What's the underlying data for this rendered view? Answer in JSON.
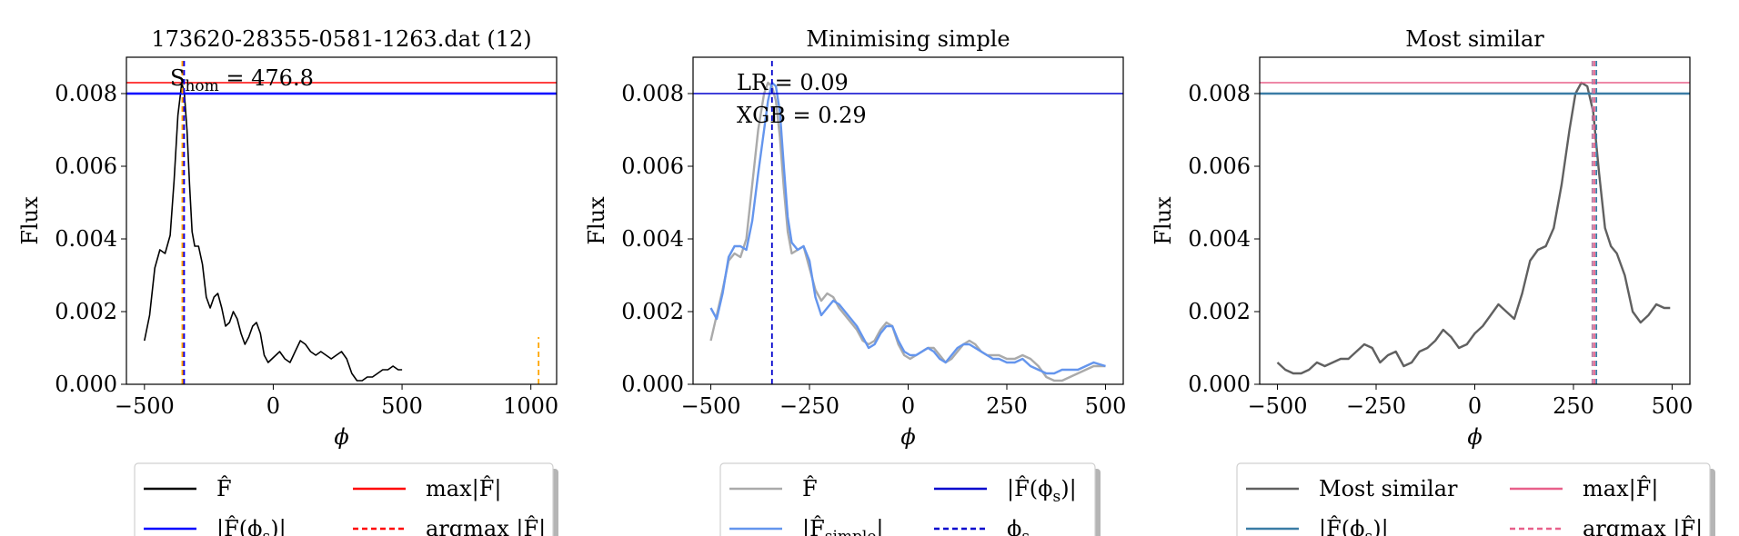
{
  "chart_data": [
    {
      "type": "line",
      "title": "173620-28355-0581-1263.dat (12)",
      "xlabel": "ϕ",
      "ylabel": "Flux",
      "xlim": [
        -570,
        1100
      ],
      "ylim": [
        0,
        0.009
      ],
      "xticks": [
        -500,
        0,
        500,
        1000
      ],
      "xtick_labels": [
        "−500",
        "0",
        "500",
        "1000"
      ],
      "yticks": [
        0,
        0.002,
        0.004,
        0.006,
        0.008
      ],
      "ytick_labels": [
        "0.000",
        "0.002",
        "0.004",
        "0.006",
        "0.008"
      ],
      "annotations": [
        "S_hom = 476.8"
      ],
      "series": [
        {
          "name": "F̂",
          "color": "#000000",
          "style": "solid",
          "x": [
            -500,
            -480,
            -460,
            -440,
            -420,
            -400,
            -385,
            -370,
            -355,
            -345,
            -335,
            -325,
            -315,
            -305,
            -290,
            -275,
            -260,
            -245,
            -230,
            -215,
            -200,
            -185,
            -170,
            -155,
            -140,
            -125,
            -110,
            -95,
            -80,
            -65,
            -50,
            -35,
            -20,
            -5,
            10,
            25,
            45,
            65,
            85,
            105,
            125,
            145,
            165,
            185,
            205,
            225,
            245,
            265,
            285,
            305,
            325,
            345,
            365,
            385,
            405,
            425,
            445,
            465,
            485,
            500
          ],
          "y": [
            0.0012,
            0.0019,
            0.0032,
            0.0037,
            0.0036,
            0.0041,
            0.0056,
            0.0074,
            0.0083,
            0.008,
            0.007,
            0.0055,
            0.0042,
            0.0038,
            0.0038,
            0.0033,
            0.0024,
            0.0021,
            0.0024,
            0.0025,
            0.0021,
            0.0016,
            0.0017,
            0.002,
            0.0018,
            0.0014,
            0.0011,
            0.0013,
            0.0016,
            0.0017,
            0.0014,
            0.0008,
            0.0006,
            0.0007,
            0.0008,
            0.0009,
            0.0007,
            0.0006,
            0.0009,
            0.0012,
            0.0011,
            0.0009,
            0.0008,
            0.0009,
            0.0008,
            0.0007,
            0.0008,
            0.0009,
            0.0007,
            0.0003,
            0.0001,
            0.0001,
            0.0002,
            0.0002,
            0.0003,
            0.0004,
            0.0004,
            0.0005,
            0.0004,
            0.0004
          ]
        }
      ],
      "hlines": [
        {
          "name": "max|F̂|",
          "y": 0.0083,
          "color": "#ff0000",
          "style": "solid"
        },
        {
          "name": "|F̂(ϕs)|",
          "y": 0.008,
          "color": "#0000ff",
          "style": "solid",
          "thick": true
        }
      ],
      "vlines": [
        {
          "name": "argmax |F̂|",
          "x": -350,
          "color": "#ff0000",
          "style": "dashed"
        },
        {
          "name": "ϕs",
          "x": -346,
          "color": "#0000ff",
          "style": "dashed"
        },
        {
          "name": "",
          "x": -353,
          "color": "#ffa500",
          "style": "dashed",
          "ymax": 0.009
        },
        {
          "name": "",
          "x": 1030,
          "color": "#ffa500",
          "style": "dashed",
          "ymax": 0.0013
        }
      ],
      "legend": [
        {
          "label": "F̂",
          "color": "#000000",
          "style": "solid"
        },
        {
          "label": "max|F̂|",
          "color": "#ff0000",
          "style": "solid"
        },
        {
          "label": "|F̂(ϕs)|",
          "color": "#0000ff",
          "style": "solid"
        },
        {
          "label": "argmax |F̂|",
          "color": "#ff0000",
          "style": "dashed"
        }
      ]
    },
    {
      "type": "line",
      "title": "Minimising simple",
      "xlabel": "ϕ",
      "ylabel": "Flux",
      "xlim": [
        -545,
        545
      ],
      "ylim": [
        0,
        0.009
      ],
      "xticks": [
        -500,
        -250,
        0,
        250,
        500
      ],
      "xtick_labels": [
        "−500",
        "−250",
        "0",
        "250",
        "500"
      ],
      "yticks": [
        0,
        0.002,
        0.004,
        0.006,
        0.008
      ],
      "ytick_labels": [
        "0.000",
        "0.002",
        "0.004",
        "0.006",
        "0.008"
      ],
      "annotations": [
        "LR = 0.09",
        "XGB = 0.29"
      ],
      "series": [
        {
          "name": "F̂",
          "color": "#aaaaaa",
          "style": "solid",
          "x": [
            -500,
            -485,
            -470,
            -455,
            -440,
            -425,
            -410,
            -395,
            -380,
            -365,
            -355,
            -345,
            -335,
            -325,
            -315,
            -305,
            -295,
            -280,
            -265,
            -250,
            -235,
            -220,
            -205,
            -190,
            -175,
            -160,
            -145,
            -130,
            -115,
            -100,
            -85,
            -70,
            -55,
            -40,
            -25,
            -10,
            5,
            20,
            35,
            50,
            65,
            80,
            95,
            110,
            125,
            140,
            155,
            170,
            185,
            200,
            215,
            230,
            250,
            270,
            290,
            310,
            330,
            350,
            370,
            390,
            410,
            430,
            450,
            470,
            500
          ],
          "y": [
            0.0012,
            0.0019,
            0.0026,
            0.0034,
            0.0036,
            0.0035,
            0.004,
            0.0055,
            0.007,
            0.008,
            0.0083,
            0.0082,
            0.0078,
            0.0068,
            0.0054,
            0.0042,
            0.0036,
            0.0037,
            0.0038,
            0.0032,
            0.0026,
            0.0023,
            0.0025,
            0.0024,
            0.0021,
            0.0019,
            0.0017,
            0.0015,
            0.0012,
            0.0011,
            0.0012,
            0.0015,
            0.0017,
            0.0016,
            0.0011,
            0.0008,
            0.0007,
            0.0008,
            0.0009,
            0.001,
            0.001,
            0.0008,
            0.0006,
            0.0007,
            0.0009,
            0.0011,
            0.0012,
            0.0011,
            0.0009,
            0.0008,
            0.0008,
            0.0008,
            0.0007,
            0.0007,
            0.0008,
            0.0007,
            0.0005,
            0.0002,
            0.0001,
            0.0001,
            0.0002,
            0.0003,
            0.0004,
            0.0005,
            0.0005
          ]
        },
        {
          "name": "|F̂simple|",
          "color": "#6495ed",
          "style": "solid",
          "x": [
            -500,
            -485,
            -470,
            -455,
            -440,
            -425,
            -410,
            -395,
            -380,
            -365,
            -355,
            -345,
            -335,
            -325,
            -315,
            -305,
            -295,
            -280,
            -265,
            -250,
            -235,
            -220,
            -205,
            -190,
            -175,
            -160,
            -145,
            -130,
            -115,
            -100,
            -85,
            -70,
            -55,
            -40,
            -25,
            -10,
            5,
            20,
            35,
            50,
            65,
            80,
            95,
            110,
            125,
            140,
            155,
            170,
            185,
            200,
            215,
            230,
            250,
            270,
            290,
            310,
            330,
            350,
            370,
            390,
            410,
            430,
            450,
            470,
            500
          ],
          "y": [
            0.0021,
            0.0018,
            0.0025,
            0.0035,
            0.0038,
            0.0038,
            0.0037,
            0.0045,
            0.0058,
            0.007,
            0.0078,
            0.0083,
            0.0082,
            0.0075,
            0.006,
            0.0046,
            0.0039,
            0.0037,
            0.0038,
            0.0034,
            0.0024,
            0.0019,
            0.0021,
            0.0023,
            0.0022,
            0.002,
            0.0018,
            0.0016,
            0.0013,
            0.001,
            0.0011,
            0.0014,
            0.0016,
            0.0016,
            0.0012,
            0.0009,
            0.0008,
            0.0008,
            0.0009,
            0.001,
            0.0009,
            0.0007,
            0.0006,
            0.0008,
            0.001,
            0.0011,
            0.0011,
            0.001,
            0.0009,
            0.0008,
            0.0007,
            0.0007,
            0.0006,
            0.0006,
            0.0007,
            0.0005,
            0.0004,
            0.0003,
            0.0003,
            0.0004,
            0.0004,
            0.0004,
            0.0005,
            0.0006,
            0.0005
          ]
        }
      ],
      "hlines": [
        {
          "name": "|F̂(ϕs)|",
          "y": 0.008,
          "color": "#0000cd",
          "style": "solid"
        }
      ],
      "vlines": [
        {
          "name": "ϕs",
          "x": -345,
          "color": "#0000cd",
          "style": "dashed"
        }
      ],
      "legend": [
        {
          "label": "F̂",
          "color": "#aaaaaa",
          "style": "solid"
        },
        {
          "label": "|F̂(ϕs)|",
          "color": "#0000cd",
          "style": "solid"
        },
        {
          "label": "|F̂simple|",
          "color": "#6495ed",
          "style": "solid"
        },
        {
          "label": "ϕs",
          "color": "#0000cd",
          "style": "dashed"
        }
      ]
    },
    {
      "type": "line",
      "title": "Most similar",
      "xlabel": "ϕ",
      "ylabel": "Flux",
      "xlim": [
        -545,
        545
      ],
      "ylim": [
        0,
        0.009
      ],
      "xticks": [
        -500,
        -250,
        0,
        250,
        500
      ],
      "xtick_labels": [
        "−500",
        "−250",
        "0",
        "250",
        "500"
      ],
      "yticks": [
        0,
        0.002,
        0.004,
        0.006,
        0.008
      ],
      "ytick_labels": [
        "0.000",
        "0.002",
        "0.004",
        "0.006",
        "0.008"
      ],
      "annotations": [],
      "series": [
        {
          "name": "Most similar",
          "color": "#606060",
          "style": "solid",
          "x": [
            -500,
            -480,
            -460,
            -440,
            -420,
            -400,
            -380,
            -360,
            -340,
            -320,
            -300,
            -280,
            -260,
            -240,
            -220,
            -200,
            -180,
            -160,
            -140,
            -120,
            -100,
            -80,
            -60,
            -40,
            -20,
            0,
            20,
            40,
            60,
            80,
            100,
            120,
            140,
            160,
            180,
            200,
            220,
            240,
            255,
            270,
            285,
            300,
            315,
            330,
            345,
            360,
            380,
            400,
            420,
            440,
            460,
            480,
            495
          ],
          "y": [
            0.0006,
            0.0004,
            0.0003,
            0.0003,
            0.0004,
            0.0006,
            0.0005,
            0.0006,
            0.0007,
            0.0007,
            0.0009,
            0.0011,
            0.001,
            0.0006,
            0.0008,
            0.0009,
            0.0005,
            0.0006,
            0.0009,
            0.001,
            0.0012,
            0.0015,
            0.0013,
            0.001,
            0.0011,
            0.0014,
            0.0016,
            0.0019,
            0.0022,
            0.002,
            0.0018,
            0.0025,
            0.0034,
            0.0037,
            0.0038,
            0.0043,
            0.0055,
            0.007,
            0.008,
            0.0083,
            0.0082,
            0.0075,
            0.0058,
            0.0043,
            0.0038,
            0.0036,
            0.003,
            0.002,
            0.0017,
            0.0019,
            0.0022,
            0.0021,
            0.0021
          ]
        }
      ],
      "hlines": [
        {
          "name": "max|F̂|",
          "y": 0.0083,
          "color": "#e8608a",
          "style": "solid"
        },
        {
          "name": "|F̂(ϕs)|",
          "y": 0.008,
          "color": "#3a7ca5",
          "style": "solid",
          "thick": true
        }
      ],
      "vlines": [
        {
          "name": "argmax |F̂|",
          "x": 303,
          "color": "#e8608a",
          "style": "dashed"
        },
        {
          "name": "ϕs",
          "x": 308,
          "color": "#3a7ca5",
          "style": "dashed"
        },
        {
          "name": "",
          "x": 298,
          "color": "#b07aa1",
          "style": "dashed"
        }
      ],
      "legend": [
        {
          "label": "Most similar",
          "color": "#606060",
          "style": "solid"
        },
        {
          "label": "max|F̂|",
          "color": "#e8608a",
          "style": "solid"
        },
        {
          "label": "|F̂(ϕs)|",
          "color": "#3a7ca5",
          "style": "solid"
        },
        {
          "label": "argmax |F̂|",
          "color": "#e8608a",
          "style": "dashed"
        }
      ]
    }
  ]
}
